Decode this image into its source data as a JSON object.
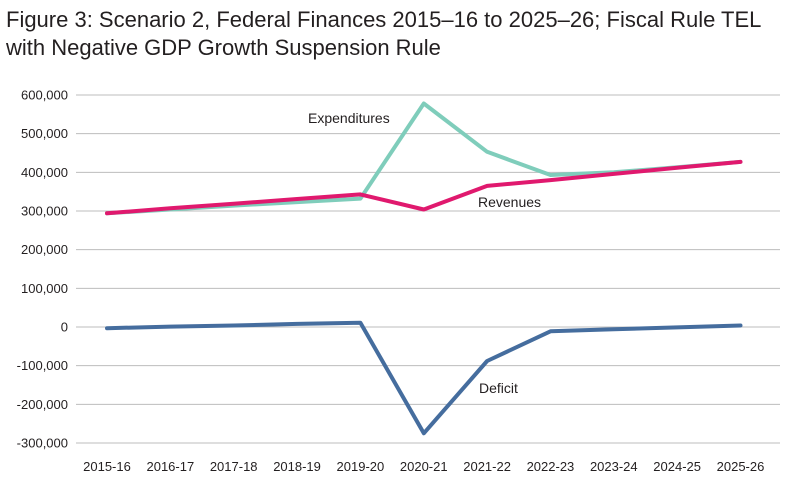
{
  "title_line1": "Figure 3: Scenario 2, Federal Finances 2015–16 to 2025–26; Fiscal Rule TEL",
  "title_line2": "with Negative GDP Growth Suspension Rule",
  "chart_data": {
    "type": "line",
    "title": "Figure 3: Scenario 2, Federal Finances 2015–16 to 2025–26; Fiscal Rule TEL with Negative GDP Growth Suspension Rule",
    "xlabel": "",
    "ylabel": "",
    "categories": [
      "2015-16",
      "2016-17",
      "2017-18",
      "2018-19",
      "2019-20",
      "2020-21",
      "2021-22",
      "2022-23",
      "2023-24",
      "2024-25",
      "2025-26"
    ],
    "ylim": [
      -300000,
      600000
    ],
    "yticks": [
      600000,
      500000,
      400000,
      300000,
      200000,
      100000,
      0,
      -100000,
      -200000,
      -300000
    ],
    "ytick_labels": [
      "600,000",
      "500,000",
      "400,000",
      "300,000",
      "200,000",
      "100,000",
      "0",
      "-100,000",
      "-200,000",
      "-300,000"
    ],
    "grid": "horizontal",
    "legend": "none (inline series labels)",
    "series": [
      {
        "name": "Expenditures",
        "color": "#7fcdbb",
        "values": [
          294000,
          304000,
          314000,
          323000,
          332000,
          578000,
          453000,
          393000,
          400000,
          413000,
          427000
        ]
      },
      {
        "name": "Revenues",
        "color": "#e0196e",
        "values": [
          294000,
          307000,
          319000,
          331000,
          343000,
          304000,
          365000,
          380000,
          396000,
          412000,
          427000
        ]
      },
      {
        "name": "Deficit",
        "color": "#456d9e",
        "values": [
          -3000,
          1000,
          4000,
          8000,
          11000,
          -275000,
          -88000,
          -11000,
          -6000,
          -1000,
          4000
        ]
      }
    ]
  }
}
